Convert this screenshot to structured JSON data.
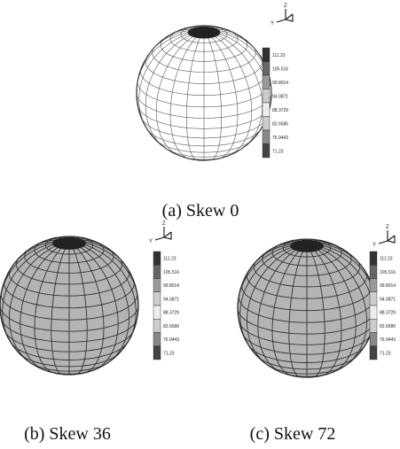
{
  "panels": [
    {
      "caption": "(a) Skew 0",
      "axes": [
        "Z",
        "Y"
      ],
      "colorbar": [
        "111.23",
        "105.516",
        "99.8014",
        "94.0871",
        "88.3729",
        "82.6586",
        "76.9443",
        "71.23"
      ]
    },
    {
      "caption": "(b) Skew 36",
      "axes": [
        "Z",
        "Y"
      ],
      "colorbar": [
        "111.23",
        "105.516",
        "99.8014",
        "94.0871",
        "88.3729",
        "82.6586",
        "76.9443",
        "71.23"
      ]
    },
    {
      "caption": "(c) Skew 72",
      "axes": [
        "Z",
        "Y"
      ],
      "colorbar": [
        "111.23",
        "105.516",
        "99.8014",
        "94.0871",
        "88.3729",
        "82.6586",
        "76.9443",
        "71.23"
      ]
    }
  ]
}
